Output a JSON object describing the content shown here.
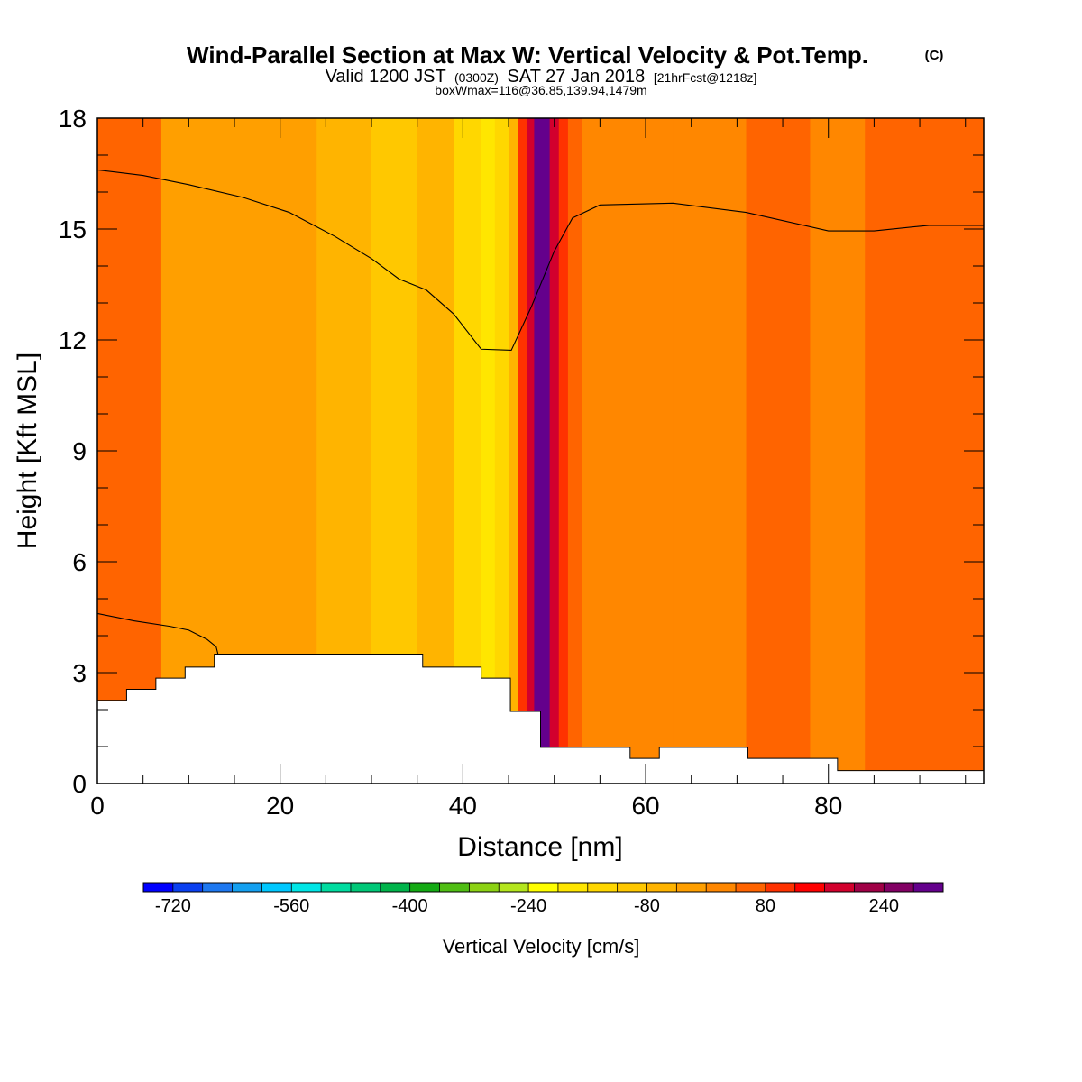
{
  "title": {
    "main": "Wind-Parallel Section at Max W: Vertical Velocity & Pot.Temp.",
    "main_mark": "(C)",
    "valid_prefix": "Valid 1200 JST",
    "valid_zulu": "(0300Z)",
    "valid_date": "SAT 27 Jan 2018",
    "valid_fcst": "[21hrFcst@1218z]",
    "box_info": "boxWmax=116@36.85,139.94,1479m"
  },
  "chart_data": {
    "type": "heatmap",
    "xlabel": "Distance [nm]",
    "ylabel": "Height [Kft MSL]",
    "xlim": [
      0,
      97
    ],
    "ylim": [
      0,
      18
    ],
    "x_ticks": [
      "0",
      "20",
      "40",
      "60",
      "80"
    ],
    "y_ticks": [
      "0",
      "3",
      "6",
      "9",
      "12",
      "15",
      "18"
    ],
    "x_tick_values": [
      0,
      20,
      40,
      60,
      80
    ],
    "y_tick_values": [
      0,
      3,
      6,
      9,
      12,
      15,
      18
    ],
    "background_band": [
      {
        "x0": 0,
        "x1": 7,
        "level": 40
      },
      {
        "x0": 7,
        "x1": 14,
        "level": -40
      },
      {
        "x0": 14,
        "x1": 24,
        "level": -40
      },
      {
        "x0": 24,
        "x1": 30,
        "level": -80
      },
      {
        "x0": 30,
        "x1": 35,
        "level": -120
      },
      {
        "x0": 35,
        "x1": 39,
        "level": -80
      },
      {
        "x0": 39,
        "x1": 42,
        "level": -160
      },
      {
        "x0": 42,
        "x1": 43.5,
        "level": -200
      },
      {
        "x0": 43.5,
        "x1": 45,
        "level": -160
      },
      {
        "x0": 45,
        "x1": 46,
        "level": -80
      },
      {
        "x0": 46,
        "x1": 47,
        "level": 80
      },
      {
        "x0": 47,
        "x1": 47.8,
        "level": 160
      },
      {
        "x0": 47.8,
        "x1": 49.5,
        "level": 280
      },
      {
        "x0": 49.5,
        "x1": 50.5,
        "level": 160
      },
      {
        "x0": 50.5,
        "x1": 51.5,
        "level": 80
      },
      {
        "x0": 51.5,
        "x1": 53,
        "level": 40
      },
      {
        "x0": 53,
        "x1": 63,
        "level": 0
      },
      {
        "x0": 63,
        "x1": 71,
        "level": 0
      },
      {
        "x0": 71,
        "x1": 78,
        "level": 40
      },
      {
        "x0": 78,
        "x1": 84,
        "level": 0
      },
      {
        "x0": 84,
        "x1": 97,
        "level": 40
      }
    ],
    "terrain": [
      {
        "x0": 0,
        "x1": 3.2,
        "h": 2.25
      },
      {
        "x0": 3.2,
        "x1": 6.4,
        "h": 2.55
      },
      {
        "x0": 6.4,
        "x1": 9.6,
        "h": 2.85
      },
      {
        "x0": 9.6,
        "x1": 12.8,
        "h": 3.15
      },
      {
        "x0": 12.8,
        "x1": 35.6,
        "h": 3.5
      },
      {
        "x0": 35.6,
        "x1": 42,
        "h": 3.15
      },
      {
        "x0": 42,
        "x1": 45.2,
        "h": 2.85
      },
      {
        "x0": 45.2,
        "x1": 48.5,
        "h": 1.95
      },
      {
        "x0": 48.5,
        "x1": 58.3,
        "h": 0.98
      },
      {
        "x0": 58.3,
        "x1": 61.5,
        "h": 0.68
      },
      {
        "x0": 61.5,
        "x1": 71.2,
        "h": 0.98
      },
      {
        "x0": 71.2,
        "x1": 81,
        "h": 0.68
      },
      {
        "x0": 81,
        "x1": 97,
        "h": 0.35
      }
    ],
    "theta_contours": [
      {
        "points": [
          [
            0,
            16.6
          ],
          [
            5,
            16.45
          ],
          [
            10,
            16.2
          ],
          [
            16,
            15.85
          ],
          [
            21,
            15.45
          ],
          [
            26,
            14.8
          ],
          [
            30,
            14.2
          ],
          [
            33,
            13.65
          ],
          [
            36,
            13.35
          ],
          [
            39,
            12.7
          ],
          [
            42,
            11.75
          ],
          [
            45.3,
            11.72
          ],
          [
            47.5,
            12.9
          ],
          [
            50,
            14.4
          ],
          [
            52,
            15.3
          ],
          [
            55,
            15.65
          ],
          [
            63,
            15.7
          ],
          [
            71,
            15.45
          ],
          [
            80,
            14.95
          ],
          [
            85,
            14.95
          ],
          [
            91,
            15.1
          ],
          [
            97,
            15.1
          ]
        ]
      },
      {
        "points": [
          [
            0,
            4.6
          ],
          [
            4,
            4.4
          ],
          [
            8,
            4.25
          ],
          [
            10,
            4.15
          ],
          [
            12,
            3.9
          ],
          [
            13,
            3.7
          ],
          [
            13.2,
            3.5
          ]
        ]
      }
    ],
    "colorbar": {
      "label": "Vertical Velocity [cm/s]",
      "tick_labels": [
        "-720",
        "-560",
        "-400",
        "-240",
        "-80",
        "80",
        "240"
      ],
      "tick_values": [
        -720,
        -560,
        -400,
        -240,
        -80,
        80,
        240
      ],
      "levels_from": -760,
      "level_step": 40,
      "colors": [
        "#0000ff",
        "#0a40f0",
        "#1e78f0",
        "#14a0f0",
        "#00c8ff",
        "#00e6e6",
        "#00dca0",
        "#00c878",
        "#00b44b",
        "#14aa14",
        "#50be14",
        "#8cd214",
        "#b4e61e",
        "#ffff00",
        "#ffe600",
        "#ffd700",
        "#ffc800",
        "#ffb400",
        "#ff9f00",
        "#ff8700",
        "#ff6400",
        "#ff3200",
        "#ff0000",
        "#d2002d",
        "#a00046",
        "#820064",
        "#64008c"
      ]
    }
  }
}
